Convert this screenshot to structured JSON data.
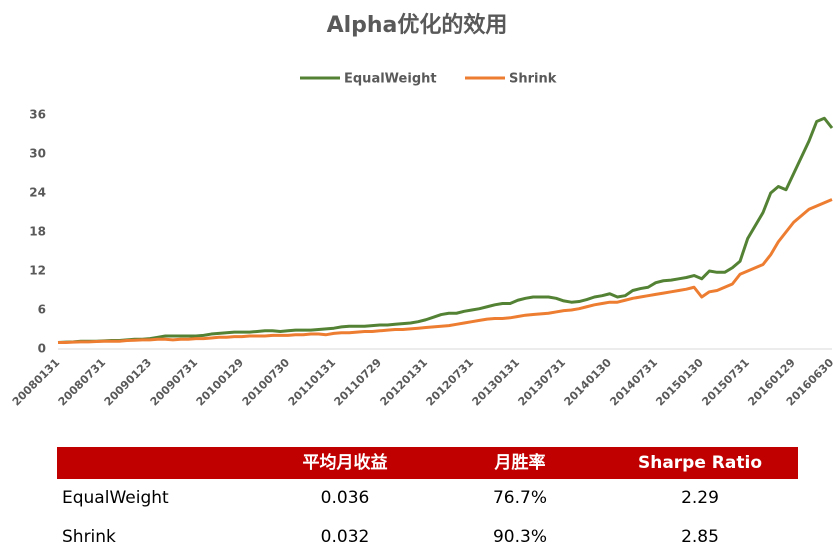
{
  "chart_data": {
    "type": "line",
    "title": "Alpha优化的效用",
    "categories": [
      "20080131",
      null,
      null,
      null,
      null,
      null,
      "20080731",
      null,
      null,
      null,
      null,
      null,
      "20090123",
      null,
      null,
      null,
      null,
      null,
      "20090731",
      null,
      null,
      null,
      null,
      null,
      "20100129",
      null,
      null,
      null,
      null,
      null,
      "20100730",
      null,
      null,
      null,
      null,
      null,
      "20110131",
      null,
      null,
      null,
      null,
      null,
      "20110729",
      null,
      null,
      null,
      null,
      null,
      "20120131",
      null,
      null,
      null,
      null,
      null,
      "20120731",
      null,
      null,
      null,
      null,
      null,
      "20130131",
      null,
      null,
      null,
      null,
      null,
      "20130731",
      null,
      null,
      null,
      null,
      null,
      "20140130",
      null,
      null,
      null,
      null,
      null,
      "20140731",
      null,
      null,
      null,
      null,
      null,
      "20150130",
      null,
      null,
      null,
      null,
      null,
      "20150731",
      null,
      null,
      null,
      null,
      null,
      "20160129",
      null,
      null,
      null,
      null,
      "20160630"
    ],
    "series": [
      {
        "name": "EqualWeight",
        "color": "#548235",
        "values": [
          1.0,
          1.05,
          1.1,
          1.2,
          1.2,
          1.2,
          1.25,
          1.3,
          1.3,
          1.4,
          1.5,
          1.5,
          1.6,
          1.8,
          2.0,
          2.0,
          2.0,
          2.0,
          2.0,
          2.1,
          2.3,
          2.4,
          2.5,
          2.6,
          2.6,
          2.6,
          2.7,
          2.8,
          2.8,
          2.7,
          2.8,
          2.9,
          2.9,
          2.9,
          3.0,
          3.1,
          3.2,
          3.4,
          3.5,
          3.5,
          3.5,
          3.6,
          3.7,
          3.7,
          3.8,
          3.9,
          4.0,
          4.2,
          4.5,
          4.9,
          5.3,
          5.5,
          5.5,
          5.8,
          6.0,
          6.2,
          6.5,
          6.8,
          7.0,
          7.0,
          7.5,
          7.8,
          8.0,
          8.0,
          8.0,
          7.8,
          7.4,
          7.2,
          7.3,
          7.6,
          8.0,
          8.2,
          8.5,
          8.0,
          8.2,
          9.0,
          9.3,
          9.5,
          10.2,
          10.5,
          10.6,
          10.8,
          11.0,
          11.3,
          10.8,
          12.0,
          11.8,
          11.8,
          12.5,
          13.5,
          17.0,
          19.0,
          21.0,
          24.0,
          25.0,
          24.5,
          27.0,
          29.5,
          32.0,
          35.0,
          35.5,
          34.0
        ]
      },
      {
        "name": "Shrink",
        "color": "#ed7d31",
        "values": [
          1.0,
          1.0,
          1.05,
          1.1,
          1.1,
          1.15,
          1.2,
          1.2,
          1.2,
          1.3,
          1.35,
          1.4,
          1.4,
          1.5,
          1.5,
          1.4,
          1.5,
          1.5,
          1.6,
          1.6,
          1.7,
          1.8,
          1.8,
          1.9,
          1.9,
          2.0,
          2.0,
          2.0,
          2.1,
          2.1,
          2.1,
          2.2,
          2.2,
          2.3,
          2.3,
          2.2,
          2.4,
          2.5,
          2.5,
          2.6,
          2.7,
          2.7,
          2.8,
          2.9,
          3.0,
          3.0,
          3.1,
          3.2,
          3.3,
          3.4,
          3.5,
          3.6,
          3.8,
          4.0,
          4.2,
          4.4,
          4.6,
          4.7,
          4.7,
          4.8,
          5.0,
          5.2,
          5.3,
          5.4,
          5.5,
          5.7,
          5.9,
          6.0,
          6.2,
          6.5,
          6.8,
          7.0,
          7.2,
          7.2,
          7.5,
          7.8,
          8.0,
          8.2,
          8.4,
          8.6,
          8.8,
          9.0,
          9.2,
          9.5,
          8.0,
          8.8,
          9.0,
          9.5,
          10.0,
          11.5,
          12.0,
          12.5,
          13.0,
          14.5,
          16.5,
          18.0,
          19.5,
          20.5,
          21.5,
          22.0,
          22.5,
          23.0
        ]
      }
    ],
    "ylim": [
      0,
      36
    ],
    "yticks": [
      0,
      6,
      12,
      18,
      24,
      30,
      36
    ],
    "grid": false,
    "legend": "top"
  },
  "table": {
    "columns": [
      "平均月收益",
      "月胜率",
      "Sharpe Ratio"
    ],
    "rows": [
      [
        "EqualWeight",
        "0.036",
        "76.7%",
        "2.29"
      ],
      [
        "Shrink",
        "0.032",
        "90.3%",
        "2.85"
      ]
    ]
  }
}
